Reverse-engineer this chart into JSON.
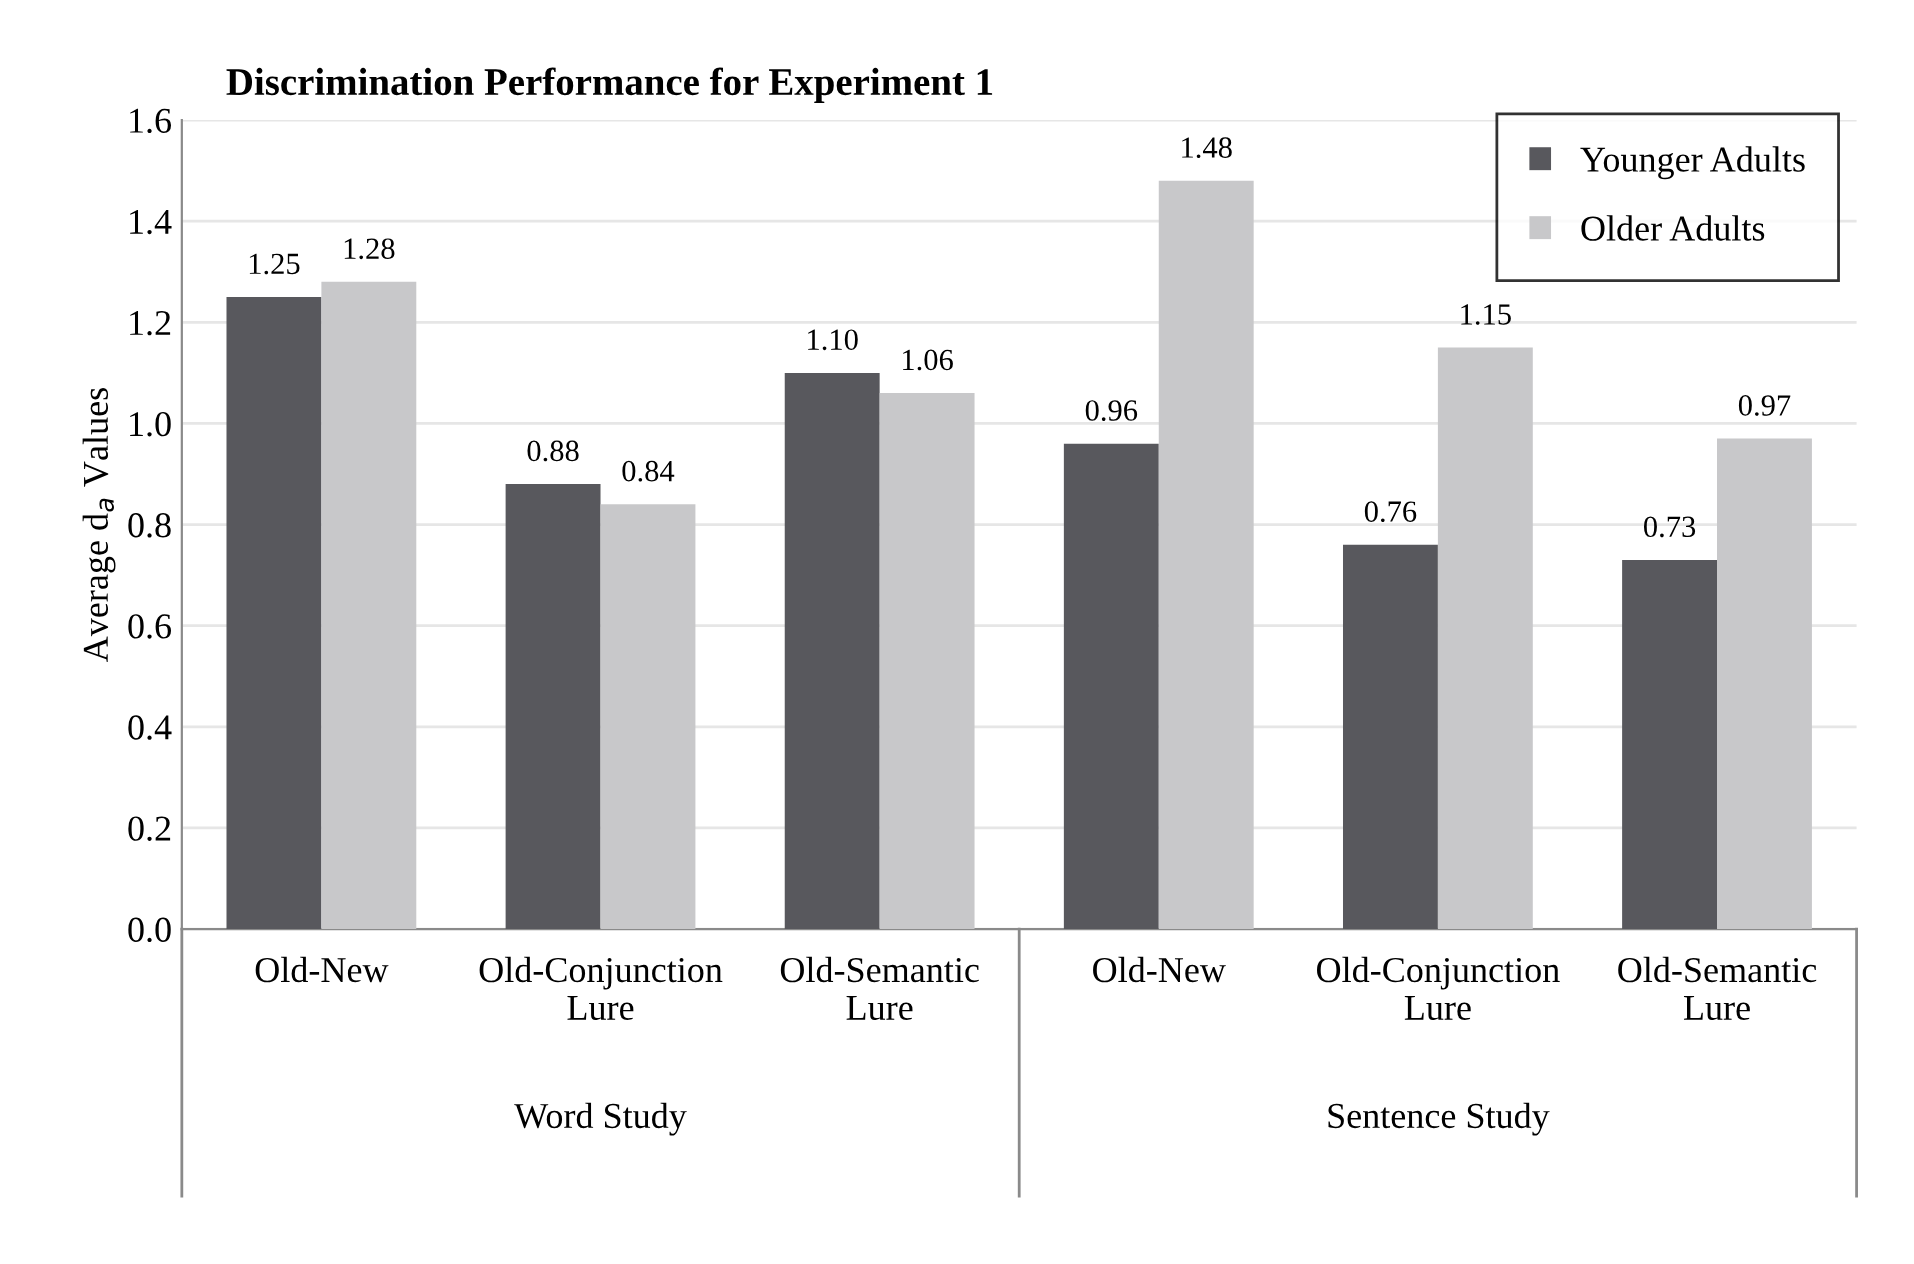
{
  "chart_data": {
    "type": "bar",
    "title": "Discrimination Performance for Experiment 1",
    "ylabel": "Average d$_{a}$ Values",
    "categories": [
      "Old-New",
      "Old-Conjunction\nLure",
      "Old-Semantic\nLure",
      "Old-New",
      "Old-Conjunction\nLure",
      "Old-Semantic\nLure"
    ],
    "series": [
      {
        "name": "Younger Adults",
        "color": "#58585d",
        "values": [
          1.25,
          0.88,
          1.1,
          0.96,
          0.76,
          0.73
        ],
        "value_labels": [
          "1.25",
          "0.88",
          "1.10",
          "0.96",
          "0.76",
          "0.73"
        ]
      },
      {
        "name": "Older Adults",
        "color": "#c8c8ca",
        "values": [
          1.28,
          0.84,
          1.06,
          1.48,
          1.15,
          0.97
        ],
        "value_labels": [
          "1.28",
          "0.84",
          "1.06",
          "1.48",
          "1.15",
          "0.97"
        ]
      }
    ],
    "annotations": [
      "Word Study",
      "Sentence Study"
    ],
    "ylim": [
      0,
      1.6
    ],
    "yticks": [
      {
        "value": 0,
        "label": "0.0"
      },
      {
        "value": 0.2,
        "label": "0.2"
      },
      {
        "value": 0.4,
        "label": "0.4"
      },
      {
        "value": 0.6,
        "label": "0.6"
      },
      {
        "value": 0.8,
        "label": "0.8"
      },
      {
        "value": 1.0,
        "label": "1.0"
      },
      {
        "value": 1.2,
        "label": "1.2"
      },
      {
        "value": 1.4,
        "label": "1.4"
      },
      {
        "value": 1.6,
        "label": "1.6"
      }
    ],
    "grid": "y",
    "legend": "top right"
  }
}
